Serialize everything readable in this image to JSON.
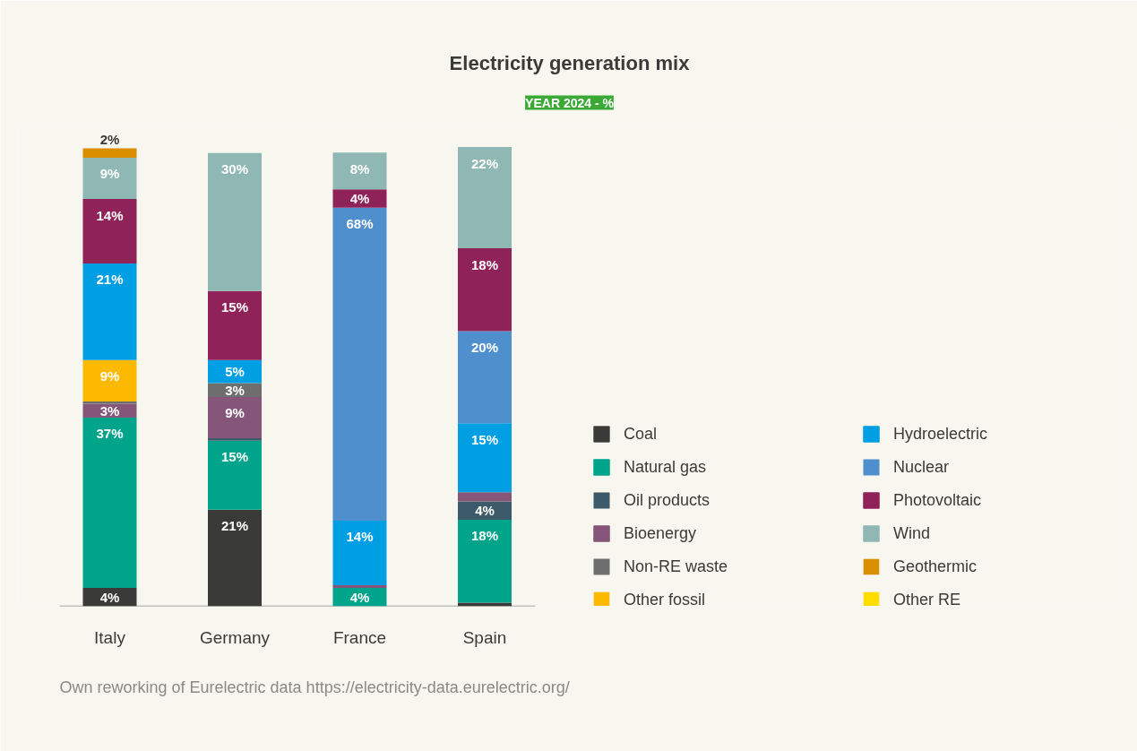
{
  "chart_data": {
    "type": "bar",
    "title": "Electricity generation mix",
    "subtitle": "YEAR 2024 - %",
    "categories": [
      "Italy",
      "Germany",
      "France",
      "Spain"
    ],
    "stacked": true,
    "ylim": [
      0,
      104
    ],
    "tick_labels": "x",
    "grid": false,
    "legend": "right",
    "series": [
      {
        "name": "Coal",
        "color": "#3a3a38",
        "values": [
          4,
          21,
          null,
          0.8
        ],
        "value_labels": [
          "4%",
          "21%",
          null,
          null
        ]
      },
      {
        "name": "Natural gas",
        "color": "#00a48a",
        "values": [
          37,
          15,
          4,
          18
        ],
        "value_labels": [
          "37%",
          "15%",
          "4%",
          "18%"
        ]
      },
      {
        "name": "Oil products",
        "color": "#3d5a6a",
        "values": [
          null,
          0.5,
          null,
          4
        ],
        "value_labels": [
          null,
          null,
          null,
          "4%"
        ]
      },
      {
        "name": "Bioenergy",
        "color": "#85567a",
        "values": [
          3,
          9,
          0.6,
          2
        ],
        "value_labels": [
          "3%",
          "9%",
          null,
          null
        ]
      },
      {
        "name": "Non-RE waste",
        "color": "#6e6e6e",
        "values": [
          0.5,
          3,
          null,
          null
        ],
        "value_labels": [
          null,
          "3%",
          null,
          null
        ]
      },
      {
        "name": "Other fossil",
        "color": "#fdb900",
        "values": [
          9,
          null,
          null,
          null
        ],
        "value_labels": [
          "9%",
          null,
          null,
          null
        ]
      },
      {
        "name": "Hydroelectric",
        "color": "#009fe3",
        "values": [
          21,
          5,
          14,
          15
        ],
        "value_labels": [
          "21%",
          "5%",
          "14%",
          "15%"
        ]
      },
      {
        "name": "Nuclear",
        "color": "#4f8fcd",
        "values": [
          null,
          null,
          68,
          20
        ],
        "value_labels": [
          null,
          null,
          "68%",
          "20%"
        ]
      },
      {
        "name": "Photovoltaic",
        "color": "#90225a",
        "values": [
          14,
          15,
          4,
          18
        ],
        "value_labels": [
          "14%",
          "15%",
          "4%",
          "18%"
        ]
      },
      {
        "name": "Wind",
        "color": "#8fb8b5",
        "values": [
          9,
          30,
          8,
          22
        ],
        "value_labels": [
          "9%",
          "30%",
          "8%",
          "22%"
        ]
      },
      {
        "name": "Geothermic",
        "color": "#d98f00",
        "values": [
          2,
          null,
          null,
          null
        ],
        "value_labels": [
          "2%",
          null,
          null,
          null
        ]
      },
      {
        "name": "Other RE",
        "color": "#ffdd00",
        "values": [
          null,
          null,
          null,
          null
        ],
        "value_labels": [
          null,
          null,
          null,
          null
        ]
      }
    ],
    "annotations": [
      "Own reworking of Eurelectric data https://electricity-data.eurelectric.org/"
    ]
  }
}
